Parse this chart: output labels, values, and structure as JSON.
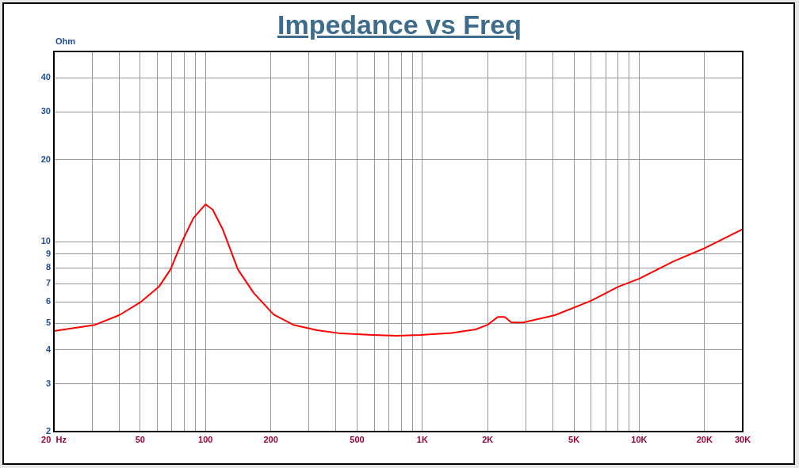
{
  "chart_data": {
    "type": "line",
    "title": "Impedance vs Freq",
    "ylabel": "Ohm",
    "log": "xy",
    "grid": true,
    "legend": false,
    "marker": "none",
    "line_style": "solid",
    "xlim": [
      20,
      30000
    ],
    "ylim": [
      2,
      50
    ],
    "xticks": [
      {
        "value": 20,
        "label": "20  Hz"
      },
      {
        "value": 30,
        "label": null
      },
      {
        "value": 40,
        "label": null
      },
      50,
      {
        "value": 60,
        "label": null
      },
      {
        "value": 70,
        "label": null
      },
      {
        "value": 80,
        "label": null
      },
      {
        "value": 90,
        "label": null
      },
      100,
      200,
      {
        "value": 300,
        "label": null
      },
      {
        "value": 400,
        "label": null
      },
      500,
      {
        "value": 600,
        "label": null
      },
      {
        "value": 700,
        "label": null
      },
      {
        "value": 800,
        "label": null
      },
      {
        "value": 900,
        "label": null
      },
      {
        "value": 1000,
        "label": "1K"
      },
      {
        "value": 2000,
        "label": "2K"
      },
      {
        "value": 3000,
        "label": null
      },
      {
        "value": 4000,
        "label": null
      },
      {
        "value": 5000,
        "label": "5K"
      },
      {
        "value": 6000,
        "label": null
      },
      {
        "value": 7000,
        "label": null
      },
      {
        "value": 8000,
        "label": null
      },
      {
        "value": 9000,
        "label": null
      },
      {
        "value": 10000,
        "label": "10K"
      },
      {
        "value": 20000,
        "label": "20K"
      },
      {
        "value": 30000,
        "label": "30K"
      }
    ],
    "yticks": [
      2,
      3,
      4,
      5,
      6,
      7,
      8,
      9,
      10,
      20,
      30,
      40,
      {
        "value": 50,
        "label": null
      }
    ],
    "series": [
      {
        "color": "#ff0000",
        "x": [
          20,
          31,
          40,
          50,
          61,
          69,
          78,
          88,
          100,
          108,
          120,
          141,
          167,
          206,
          254,
          327,
          421,
          590,
          759,
          977,
          1368,
          1759,
          2000,
          2228,
          2400,
          2572,
          2917,
          4085,
          5960,
          8000,
          10000,
          14430,
          20200,
          30000
        ],
        "values": [
          4.69,
          4.94,
          5.36,
          5.97,
          6.82,
          7.9,
          10,
          12.2,
          13.7,
          13.1,
          11.1,
          7.9,
          6.46,
          5.39,
          4.94,
          4.72,
          4.59,
          4.53,
          4.5,
          4.53,
          4.61,
          4.75,
          4.94,
          5.28,
          5.28,
          5.04,
          5.04,
          5.36,
          6.04,
          6.82,
          7.3,
          8.46,
          9.48,
          11.1
        ]
      }
    ]
  }
}
